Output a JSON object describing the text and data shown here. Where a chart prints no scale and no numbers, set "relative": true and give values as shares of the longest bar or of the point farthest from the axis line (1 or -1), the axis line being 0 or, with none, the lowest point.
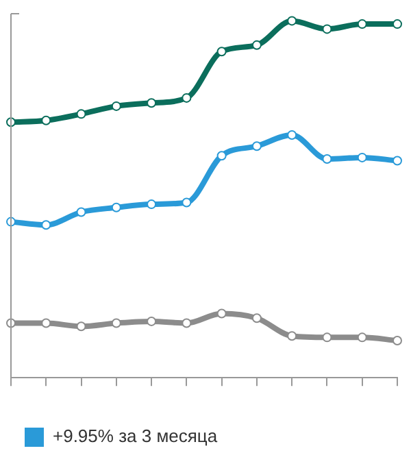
{
  "chart_data": {
    "type": "line",
    "relative": true,
    "categories": [
      null,
      null,
      null,
      null,
      null,
      null,
      null,
      null,
      null,
      null,
      null,
      null
    ],
    "marker": "circle",
    "legend": "bottom",
    "series": [
      {
        "color": "#0b6e5c",
        "values": [
          0.716,
          0.721,
          0.739,
          0.761,
          0.77,
          0.784,
          0.914,
          0.932,
          1,
          0.977,
          0.991,
          0.991
        ]
      },
      {
        "name": "+9.95% за 3 месяца",
        "color": "#2a9ad8",
        "values": [
          0.437,
          0.428,
          0.464,
          0.477,
          0.486,
          0.491,
          0.622,
          0.649,
          0.68,
          0.613,
          0.617,
          0.608
        ]
      },
      {
        "color": "#8c8c8c",
        "values": [
          0.153,
          0.153,
          0.144,
          0.153,
          0.158,
          0.153,
          0.18,
          0.167,
          0.117,
          0.113,
          0.113,
          0.104
        ]
      }
    ]
  }
}
